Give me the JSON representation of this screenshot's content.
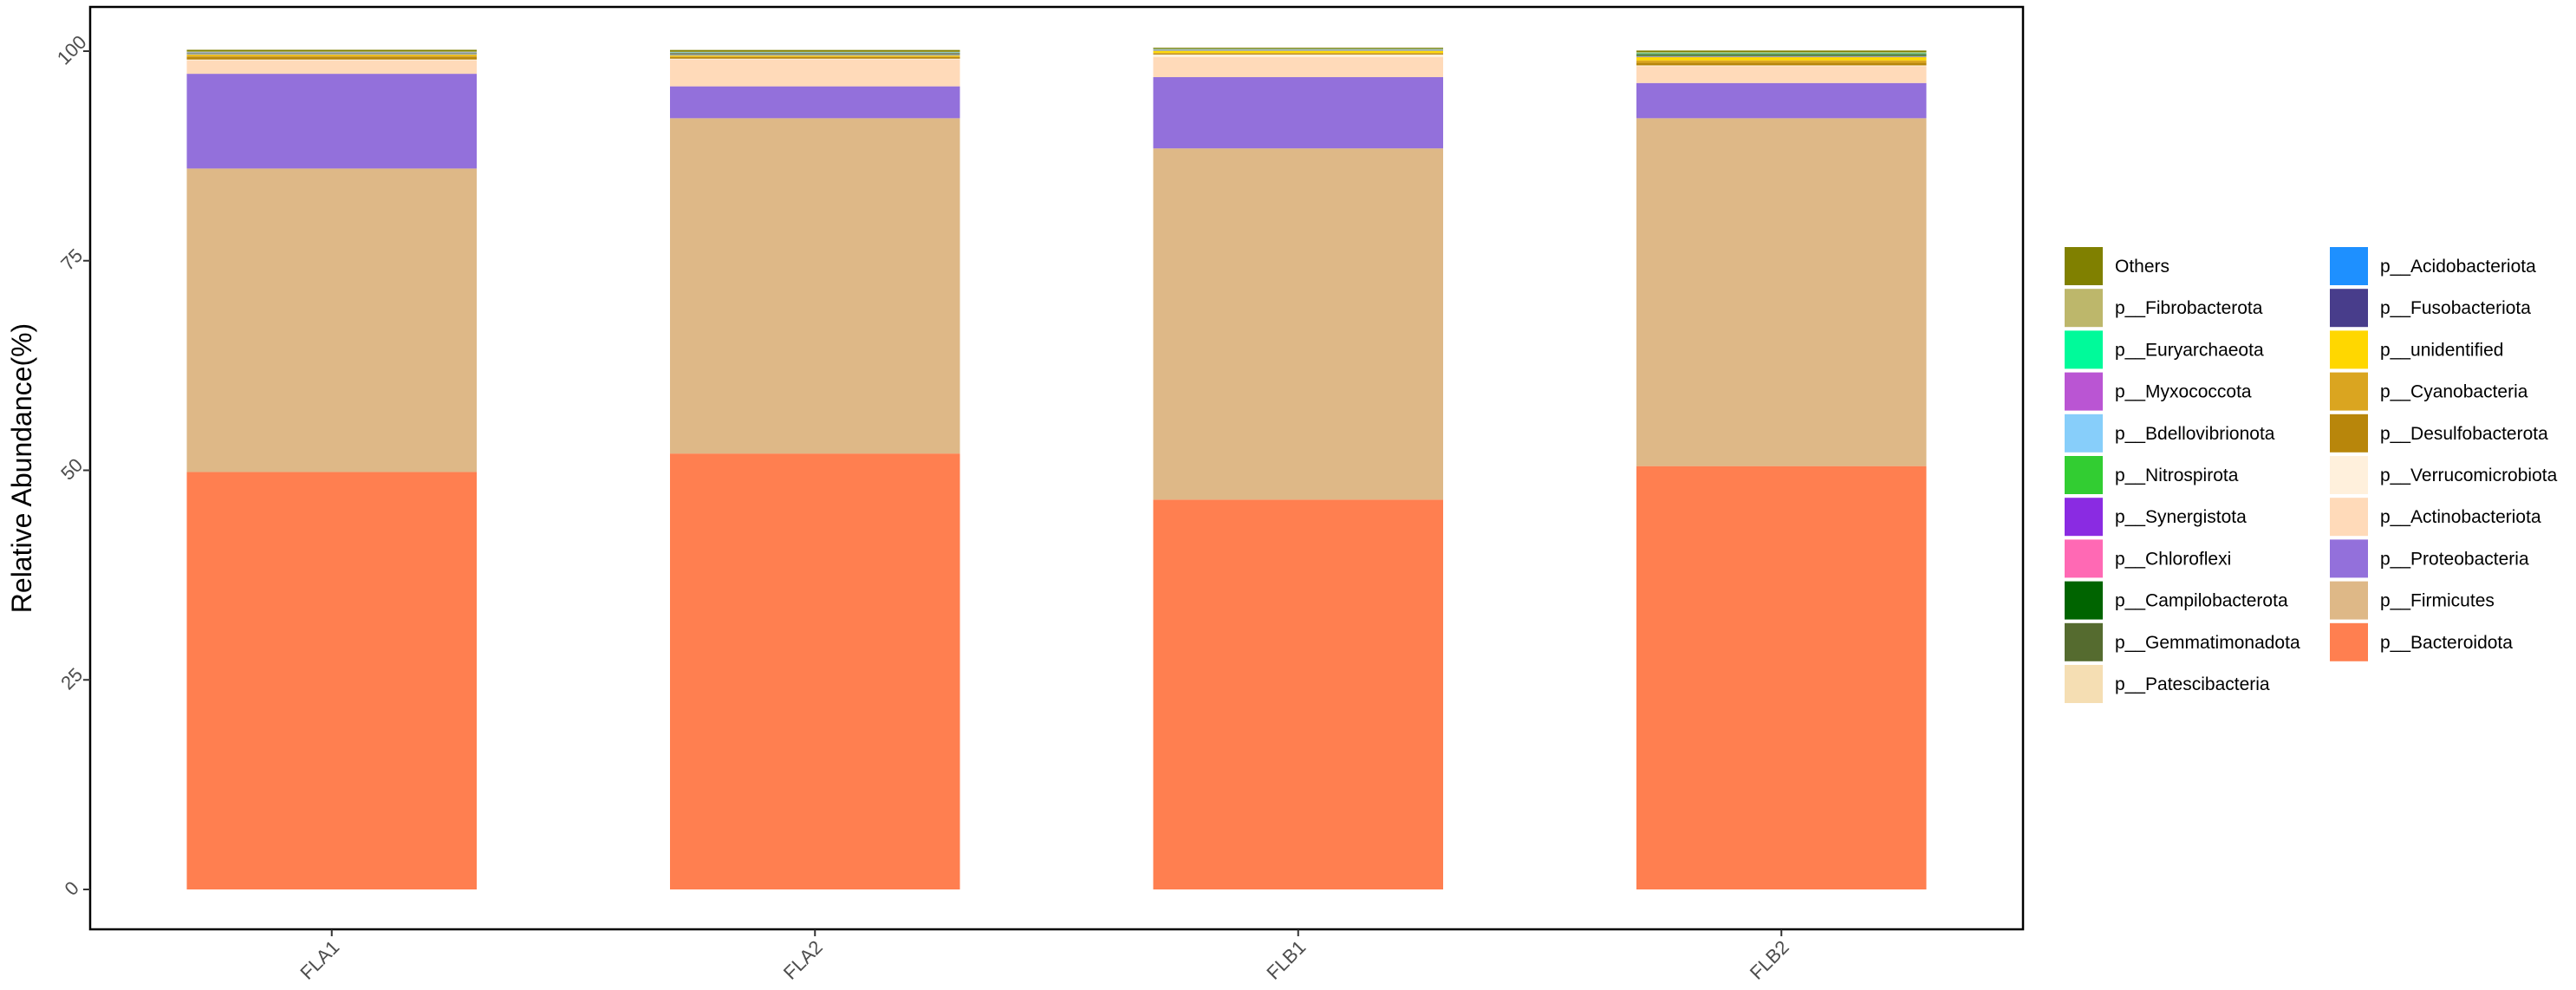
{
  "chart_data": {
    "type": "bar",
    "stacked": true,
    "ylabel": "Relative Abundance(%)",
    "xlabel": "",
    "ylim": [
      0,
      100
    ],
    "yticks": [
      0,
      25,
      50,
      75,
      100
    ],
    "grid": false,
    "legend_position": "right",
    "categories": [
      "FLA1",
      "FLA2",
      "FLB1",
      "FLB2"
    ],
    "series": [
      {
        "name": "p__Bacteroidota",
        "color": "#FF7F50",
        "values": [
          49.8,
          52.0,
          46.5,
          50.5
        ]
      },
      {
        "name": "p__Firmicutes",
        "color": "#DEB887",
        "values": [
          36.2,
          40.0,
          41.9,
          41.5
        ]
      },
      {
        "name": "p__Proteobacteria",
        "color": "#9370DB",
        "values": [
          11.3,
          3.8,
          8.5,
          4.2
        ]
      },
      {
        "name": "p__Actinobacteriota",
        "color": "#FFDAB9",
        "values": [
          1.6,
          3.2,
          2.4,
          2.0
        ]
      },
      {
        "name": "p__Verrucomicrobiota",
        "color": "#FFF0DC",
        "values": [
          0.1,
          0.1,
          0.3,
          0.1
        ]
      },
      {
        "name": "p__Desulfobacterota",
        "color": "#B8860B",
        "values": [
          0.3,
          0.2,
          0.1,
          0.3
        ]
      },
      {
        "name": "p__Cyanobacteria",
        "color": "#DAA520",
        "values": [
          0.2,
          0.1,
          0.1,
          0.3
        ]
      },
      {
        "name": "p__unidentified",
        "color": "#FFD700",
        "values": [
          0.1,
          0.1,
          0.2,
          0.4
        ]
      },
      {
        "name": "p__Fusobacteriota",
        "color": "#483D8B",
        "values": [
          0.05,
          0.05,
          0.0,
          0.05
        ]
      },
      {
        "name": "p__Acidobacteriota",
        "color": "#1E90FF",
        "values": [
          0.02,
          0.02,
          0.02,
          0.02
        ]
      },
      {
        "name": "p__Patescibacteria",
        "color": "#F5DEB3",
        "values": [
          0.05,
          0.05,
          0.05,
          0.05
        ]
      },
      {
        "name": "p__Gemmatimonadota",
        "color": "#556B2F",
        "values": [
          0.05,
          0.1,
          0.05,
          0.1
        ]
      },
      {
        "name": "p__Campilobacterota",
        "color": "#006400",
        "values": [
          0.02,
          0.05,
          0.02,
          0.1
        ]
      },
      {
        "name": "p__Chloroflexi",
        "color": "#FF69B4",
        "values": [
          0.02,
          0.02,
          0.02,
          0.02
        ]
      },
      {
        "name": "p__Synergistota",
        "color": "#8A2BE2",
        "values": [
          0.02,
          0.02,
          0.02,
          0.02
        ]
      },
      {
        "name": "p__Nitrospirota",
        "color": "#32CD32",
        "values": [
          0.02,
          0.02,
          0.02,
          0.1
        ]
      },
      {
        "name": "p__Bdellovibrionota",
        "color": "#87CEFA",
        "values": [
          0.02,
          0.02,
          0.02,
          0.02
        ]
      },
      {
        "name": "p__Myxococcota",
        "color": "#BA55D3",
        "values": [
          0.02,
          0.02,
          0.02,
          0.02
        ]
      },
      {
        "name": "p__Euryarchaeota",
        "color": "#00FA9A",
        "values": [
          0.02,
          0.02,
          0.02,
          0.02
        ]
      },
      {
        "name": "p__Fibrobacterota",
        "color": "#BDB76B",
        "values": [
          0.05,
          0.05,
          0.05,
          0.05
        ]
      },
      {
        "name": "Others",
        "color": "#808000",
        "values": [
          0.2,
          0.2,
          0.1,
          0.2
        ]
      }
    ],
    "legend_columns": [
      [
        "Others",
        "p__Fibrobacterota",
        "p__Euryarchaeota",
        "p__Myxococcota",
        "p__Bdellovibrionota",
        "p__Nitrospirota",
        "p__Synergistota",
        "p__Chloroflexi",
        "p__Campilobacterota",
        "p__Gemmatimonadota",
        "p__Patescibacteria"
      ],
      [
        "p__Acidobacteriota",
        "p__Fusobacteriota",
        "p__unidentified",
        "p__Cyanobacteria",
        "p__Desulfobacterota",
        "p__Verrucomicrobiota",
        "p__Actinobacteriota",
        "p__Proteobacteria",
        "p__Firmicutes",
        "p__Bacteroidota"
      ]
    ]
  }
}
